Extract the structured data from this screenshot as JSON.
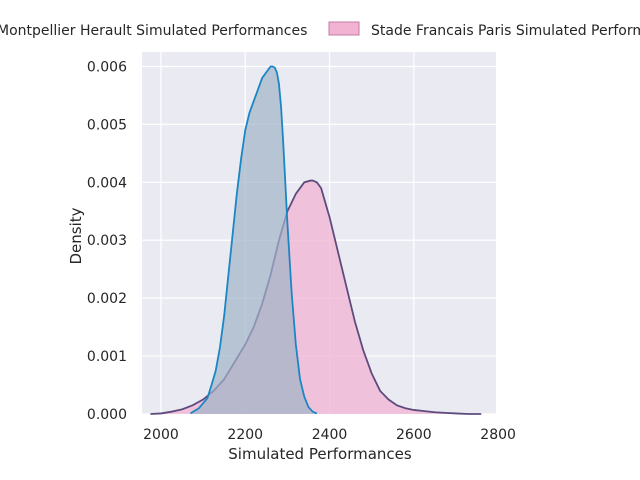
{
  "chart_data": {
    "type": "area",
    "title": "",
    "xlabel": "Simulated Performances",
    "ylabel": "Density",
    "xlim": [
      1955,
      2795
    ],
    "ylim": [
      0,
      0.00625
    ],
    "x_ticks": [
      2000,
      2200,
      2400,
      2600,
      2800
    ],
    "y_ticks": [
      0.0,
      0.001,
      0.002,
      0.003,
      0.004,
      0.005,
      0.006
    ],
    "x_tick_labels": [
      "2000",
      "2200",
      "2400",
      "2600",
      "2800"
    ],
    "y_tick_labels": [
      "0.000",
      "0.001",
      "0.002",
      "0.003",
      "0.004",
      "0.005",
      "0.006"
    ],
    "grid": true,
    "legend_position": "top",
    "series": [
      {
        "name": "Montpellier Herault Simulated Performances",
        "fill_color": "#9fb3c7",
        "line_color": "#1a86c4",
        "x": [
          2070,
          2090,
          2110,
          2120,
          2130,
          2140,
          2150,
          2160,
          2170,
          2180,
          2190,
          2200,
          2210,
          2220,
          2230,
          2240,
          2250,
          2260,
          2265,
          2270,
          2275,
          2280,
          2285,
          2290,
          2295,
          2300,
          2310,
          2320,
          2330,
          2340,
          2350,
          2360,
          2370
        ],
        "y": [
          1e-05,
          0.0001,
          0.00027,
          0.0005,
          0.00075,
          0.00115,
          0.0017,
          0.0024,
          0.0031,
          0.0038,
          0.0044,
          0.0049,
          0.0052,
          0.0054,
          0.0056,
          0.0058,
          0.0059,
          0.006,
          0.006,
          0.00598,
          0.0059,
          0.0057,
          0.0053,
          0.0047,
          0.004,
          0.0033,
          0.0021,
          0.0012,
          0.0006,
          0.0003,
          0.00012,
          4e-05,
          1e-05
        ]
      },
      {
        "name": "Stade Francais Paris Simulated Performances",
        "fill_color": "#f2b3d3",
        "line_color": "#5e4b7e",
        "x": [
          1975,
          2000,
          2025,
          2050,
          2075,
          2100,
          2125,
          2150,
          2175,
          2200,
          2220,
          2240,
          2260,
          2280,
          2300,
          2320,
          2340,
          2355,
          2360,
          2370,
          2380,
          2400,
          2420,
          2440,
          2460,
          2480,
          2500,
          2520,
          2540,
          2560,
          2580,
          2600,
          2625,
          2650,
          2675,
          2700,
          2730,
          2760
        ],
        "y": [
          0.0,
          1e-05,
          4e-05,
          8e-05,
          0.00015,
          0.00025,
          0.0004,
          0.0006,
          0.0009,
          0.0012,
          0.0015,
          0.0019,
          0.0024,
          0.003,
          0.0035,
          0.0038,
          0.004,
          0.00403,
          0.00403,
          0.004,
          0.0039,
          0.0034,
          0.0028,
          0.0022,
          0.0016,
          0.0011,
          0.0007,
          0.0004,
          0.00025,
          0.00015,
          0.0001,
          7e-05,
          5e-05,
          3e-05,
          2e-05,
          1e-05,
          0.0,
          0.0
        ]
      }
    ]
  }
}
